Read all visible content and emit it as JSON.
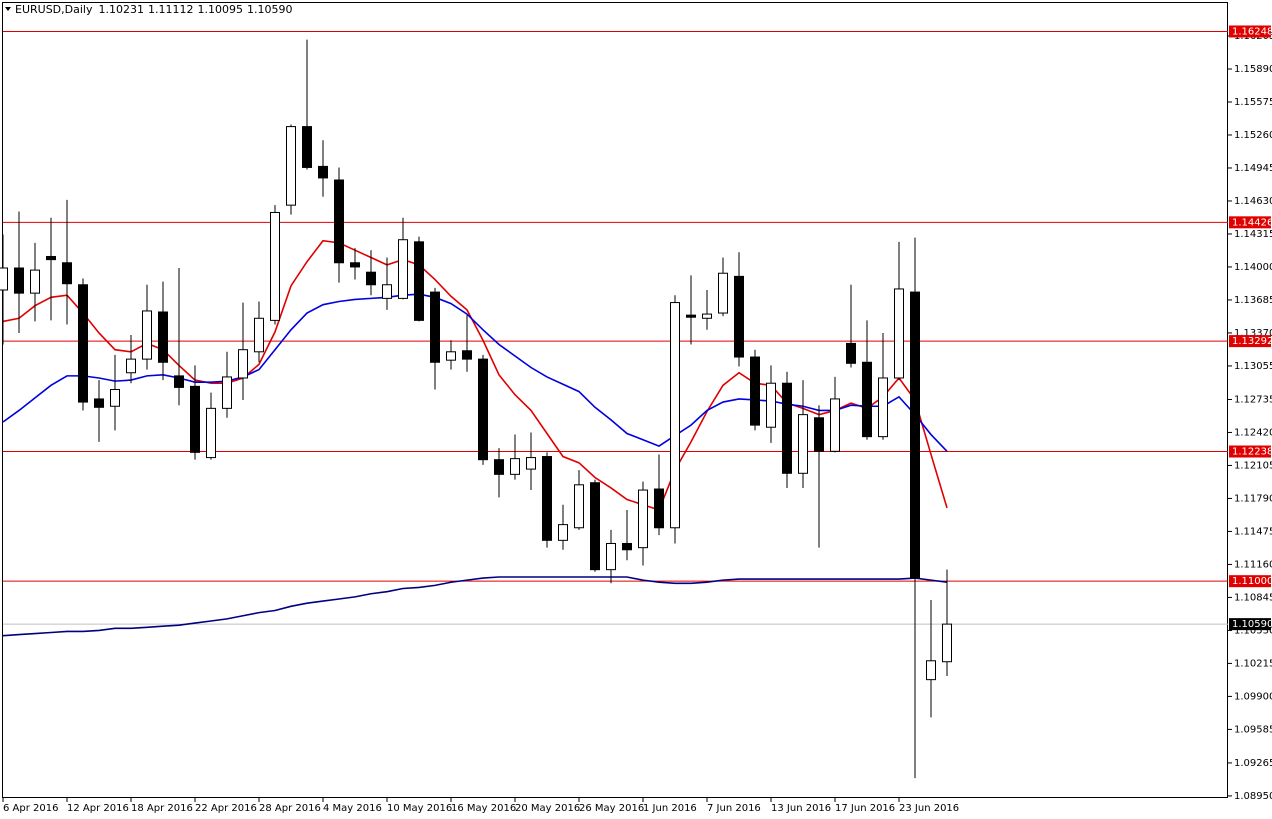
{
  "chart_data": {
    "type": "candlestick",
    "title": "EURUSD,Daily",
    "title_values": [
      "1.10231",
      "1.11112",
      "1.10095",
      "1.10590"
    ],
    "categories": [
      "6 Apr 2016",
      null,
      null,
      null,
      "12 Apr 2016",
      null,
      null,
      null,
      "18 Apr 2016",
      null,
      null,
      null,
      "22 Apr 2016",
      null,
      null,
      null,
      "28 Apr 2016",
      null,
      null,
      null,
      "4 May 2016",
      null,
      null,
      null,
      "10 May 2016",
      null,
      null,
      null,
      "16 May 2016",
      null,
      null,
      null,
      "20 May 2016",
      null,
      null,
      null,
      "26 May 2016",
      null,
      null,
      null,
      "1 Jun 2016",
      null,
      null,
      null,
      "7 Jun 2016",
      null,
      null,
      null,
      "13 Jun 2016",
      null,
      null,
      null,
      "17 Jun 2016",
      null,
      null,
      null,
      "23 Jun 2016",
      null,
      null,
      null
    ],
    "open": [
      1.1378,
      1.1399,
      1.1375,
      1.141,
      1.1404,
      1.1383,
      1.1274,
      1.1267,
      1.1299,
      1.1312,
      1.1357,
      1.1296,
      1.1286,
      1.1218,
      1.1265,
      1.1294,
      1.1319,
      1.1349,
      1.1459,
      1.1534,
      1.1496,
      1.1483,
      1.1404,
      1.1395,
      1.137,
      1.137,
      1.1424,
      1.1376,
      1.1311,
      1.132,
      1.1312,
      1.1216,
      1.1202,
      1.1207,
      1.1219,
      1.1139,
      1.1151,
      1.1194,
      1.1111,
      1.1136,
      1.1132,
      1.1188,
      1.1151,
      1.1354,
      1.1351,
      1.1356,
      1.1391,
      1.1314,
      1.1247,
      1.1289,
      1.1203,
      1.1256,
      1.1224,
      1.1327,
      1.1309,
      1.1238,
      1.1294,
      1.1376,
      1.1006,
      1.10231
    ],
    "high": [
      1.1431,
      1.1453,
      1.1423,
      1.1447,
      1.1464,
      1.1389,
      1.1292,
      1.1316,
      1.1335,
      1.1383,
      1.1386,
      1.1399,
      1.1306,
      1.128,
      1.1319,
      1.1366,
      1.1367,
      1.1459,
      1.1536,
      1.1617,
      1.1521,
      1.1495,
      1.1418,
      1.1416,
      1.1409,
      1.1447,
      1.1429,
      1.138,
      1.133,
      1.1354,
      1.1316,
      1.1227,
      1.124,
      1.1242,
      1.1223,
      1.1173,
      1.1206,
      1.1197,
      1.1149,
      1.1168,
      1.1195,
      1.1221,
      1.1373,
      1.1392,
      1.1378,
      1.1409,
      1.1414,
      1.1321,
      1.1306,
      1.13,
      1.1292,
      1.1268,
      1.1295,
      1.1383,
      1.1349,
      1.1337,
      1.1424,
      1.1428,
      1.1082,
      1.11112
    ],
    "low": [
      1.1326,
      1.1337,
      1.1348,
      1.1349,
      1.1345,
      1.1263,
      1.1233,
      1.1244,
      1.1289,
      1.1302,
      1.1292,
      1.1268,
      1.1216,
      1.1216,
      1.1256,
      1.1273,
      1.1309,
      1.1345,
      1.145,
      1.1493,
      1.1467,
      1.1385,
      1.1388,
      1.1373,
      1.1359,
      1.1369,
      1.1348,
      1.1283,
      1.1302,
      1.13,
      1.1211,
      1.118,
      1.1197,
      1.1187,
      1.1132,
      1.113,
      1.1149,
      1.1109,
      1.1098,
      1.112,
      1.1115,
      1.1144,
      1.1136,
      1.1326,
      1.134,
      1.1353,
      1.1305,
      1.1244,
      1.1232,
      1.1189,
      1.1189,
      1.1132,
      1.1223,
      1.1304,
      1.1235,
      1.1235,
      1.1292,
      1.0912,
      1.097,
      1.10095
    ],
    "close": [
      1.1399,
      1.1375,
      1.1397,
      1.1407,
      1.1384,
      1.1271,
      1.1266,
      1.1283,
      1.1312,
      1.1358,
      1.1309,
      1.1285,
      1.1223,
      1.1265,
      1.1295,
      1.1321,
      1.1351,
      1.1452,
      1.1534,
      1.1495,
      1.1485,
      1.1404,
      1.14,
      1.1383,
      1.1383,
      1.1426,
      1.1349,
      1.1309,
      1.1319,
      1.1312,
      1.1216,
      1.1202,
      1.1217,
      1.1218,
      1.1139,
      1.1154,
      1.1192,
      1.1111,
      1.1136,
      1.113,
      1.1187,
      1.1151,
      1.1366,
      1.1352,
      1.1355,
      1.1394,
      1.1314,
      1.1249,
      1.1289,
      1.1203,
      1.1259,
      1.1224,
      1.1274,
      1.1308,
      1.1238,
      1.1294,
      1.1379,
      1.1103,
      1.1024,
      1.1059
    ],
    "indicators": [
      {
        "color": "#e00000",
        "values": [
          1.1348,
          1.1351,
          1.1363,
          1.1371,
          1.1373,
          1.1356,
          1.1337,
          1.1321,
          1.1319,
          1.1327,
          1.1321,
          1.1306,
          1.1292,
          1.1289,
          1.1289,
          1.1294,
          1.1307,
          1.1338,
          1.1382,
          1.1405,
          1.1425,
          1.1423,
          1.1416,
          1.1409,
          1.1402,
          1.1407,
          1.1402,
          1.1388,
          1.1372,
          1.1359,
          1.133,
          1.1297,
          1.1278,
          1.1263,
          1.1241,
          1.1219,
          1.1213,
          1.1199,
          1.1189,
          1.1178,
          1.1173,
          1.1168,
          1.1206,
          1.1233,
          1.1262,
          1.1287,
          1.1299,
          1.1289,
          1.1287,
          1.127,
          1.1265,
          1.1259,
          1.1263,
          1.127,
          1.1265,
          1.1276,
          1.1294,
          1.1273,
          1.1221,
          1.117
        ]
      },
      {
        "color": "#0000e0",
        "values": [
          1.1252,
          1.1263,
          1.1275,
          1.1287,
          1.1296,
          1.1296,
          1.1294,
          1.1291,
          1.1292,
          1.1296,
          1.1297,
          1.1294,
          1.129,
          1.129,
          1.1291,
          1.1295,
          1.1302,
          1.1321,
          1.134,
          1.1356,
          1.1364,
          1.1367,
          1.1369,
          1.137,
          1.1371,
          1.1373,
          1.1374,
          1.1371,
          1.1365,
          1.1355,
          1.134,
          1.1326,
          1.1315,
          1.1304,
          1.1295,
          1.1288,
          1.1281,
          1.1266,
          1.1254,
          1.1241,
          1.1235,
          1.1229,
          1.1239,
          1.1249,
          1.1263,
          1.1271,
          1.1274,
          1.1273,
          1.1272,
          1.1269,
          1.1267,
          1.1263,
          1.1263,
          1.1268,
          1.1267,
          1.1267,
          1.1276,
          1.1259,
          1.124,
          1.1224
        ]
      },
      {
        "color": "#000080",
        "values": [
          1.1048,
          1.1049,
          1.105,
          1.1051,
          1.1052,
          1.1052,
          1.1053,
          1.1055,
          1.1055,
          1.1056,
          1.1057,
          1.1058,
          1.106,
          1.1062,
          1.1064,
          1.1067,
          1.107,
          1.1072,
          1.1076,
          1.1079,
          1.1081,
          1.1083,
          1.1085,
          1.1088,
          1.109,
          1.1093,
          1.1094,
          1.1096,
          1.1099,
          1.1101,
          1.1103,
          1.1104,
          1.1104,
          1.1104,
          1.1104,
          1.1104,
          1.1104,
          1.1104,
          1.1104,
          1.1104,
          1.1101,
          1.1099,
          1.1098,
          1.1098,
          1.1099,
          1.1101,
          1.1102,
          1.1102,
          1.1102,
          1.1102,
          1.1102,
          1.1102,
          1.1102,
          1.1102,
          1.1102,
          1.1102,
          1.1102,
          1.1103,
          1.1101,
          1.1099
        ]
      }
    ],
    "hlines": [
      {
        "value": 1.16248,
        "label": "1.16248",
        "color": "#e00000"
      },
      {
        "value": 1.14426,
        "label": "1.14426",
        "color": "#e00000"
      },
      {
        "value": 1.13292,
        "label": "1.13292",
        "color": "#e00000"
      },
      {
        "value": 1.12238,
        "label": "1.12238",
        "color": "#e00000"
      },
      {
        "value": 1.11,
        "label": "1.11000",
        "color": "#e00000"
      }
    ],
    "price_line": {
      "value": 1.1059,
      "label": "1.10590",
      "color": "#c0c0c0"
    },
    "ylim": [
      1.0893,
      1.1652
    ],
    "yticks": [
      {
        "value": 1.0895,
        "label": "1.08950"
      },
      {
        "value": 1.09265,
        "label": "1.09265"
      },
      {
        "value": 1.09585,
        "label": "1.09585"
      },
      {
        "value": 1.099,
        "label": "1.09900"
      },
      {
        "value": 1.10215,
        "label": "1.10215"
      },
      {
        "value": 1.1053,
        "label": "1.10530"
      },
      {
        "value": 1.10845,
        "label": "1.10845"
      },
      {
        "value": 1.1116,
        "label": "1.11160"
      },
      {
        "value": 1.11475,
        "label": "1.11475"
      },
      {
        "value": 1.1179,
        "label": "1.11790"
      },
      {
        "value": 1.12105,
        "label": "1.12105"
      },
      {
        "value": 1.1242,
        "label": "1.12420"
      },
      {
        "value": 1.12735,
        "label": "1.12735"
      },
      {
        "value": 1.13055,
        "label": "1.13055"
      },
      {
        "value": 1.1337,
        "label": "1.13370"
      },
      {
        "value": 1.13685,
        "label": "1.13685"
      },
      {
        "value": 1.14,
        "label": "1.14000"
      },
      {
        "value": 1.14315,
        "label": "1.14315"
      },
      {
        "value": 1.1463,
        "label": "1.14630"
      },
      {
        "value": 1.14945,
        "label": "1.14945"
      },
      {
        "value": 1.1526,
        "label": "1.15260"
      },
      {
        "value": 1.15575,
        "label": "1.15575"
      },
      {
        "value": 1.1589,
        "label": "1.15890"
      },
      {
        "value": 1.16205,
        "label": "1.16205"
      }
    ],
    "bull_color": "#ffffff",
    "bear_color": "#000000"
  }
}
